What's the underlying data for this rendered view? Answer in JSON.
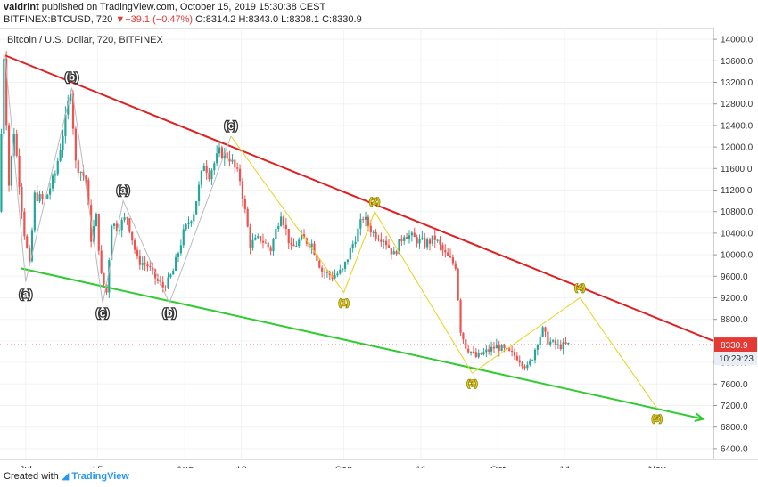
{
  "header": {
    "author": "valdrint",
    "published_text": "published on TradingView.com, October 15, 2019 15:30:38 CEST",
    "symbol": "BITFINEX:BTCUSD, 720",
    "change": "−39.1 (−0.47%)",
    "open": "O:8314.2",
    "high": "H:8343.0",
    "low": "L:8308.1",
    "close": "C:8330.9"
  },
  "chart_data": {
    "type": "candlestick",
    "title": "Bitcoin / U.S. Dollar, 720, BITFINEX",
    "ylim": [
      6200,
      14200
    ],
    "xlim": [
      "2019-06-26",
      "2019-11-12"
    ],
    "price_ticks": [
      14000,
      13600,
      13200,
      12800,
      12400,
      12000,
      11600,
      11200,
      10800,
      10400,
      10000,
      9600,
      9200,
      8800,
      8400,
      8000,
      7600,
      7200,
      6800,
      6400
    ],
    "price_tick_labels": [
      "14000.0",
      "13600.0",
      "13200.0",
      "12800.0",
      "12400.0",
      "12000.0",
      "11600.0",
      "11200.0",
      "10800.0",
      "10400.0",
      "10000.0",
      "9600.0",
      "9200.0",
      "8800.0",
      "8400.0",
      "8000.0",
      "7600.0",
      "7200.0",
      "6800.0",
      "6400.0"
    ],
    "time_ticks": [
      {
        "date": "2019-07-01",
        "label": "Jul"
      },
      {
        "date": "2019-07-15",
        "label": "15"
      },
      {
        "date": "2019-08-01",
        "label": "Aug"
      },
      {
        "date": "2019-08-12",
        "label": "12"
      },
      {
        "date": "2019-09-01",
        "label": "Sep"
      },
      {
        "date": "2019-09-16",
        "label": "16"
      },
      {
        "date": "2019-10-01",
        "label": "Oct"
      },
      {
        "date": "2019-10-14",
        "label": "14"
      },
      {
        "date": "2019-11-01",
        "label": "Nov"
      }
    ],
    "last_price": {
      "value": 8330.9,
      "label": "8330.9",
      "countdown": "10:29:23"
    },
    "price_path": [
      [
        "2019-06-26",
        10800
      ],
      [
        "2019-06-27",
        13700
      ],
      [
        "2019-06-28",
        11300
      ],
      [
        "2019-06-29",
        12300
      ],
      [
        "2019-07-01",
        10400
      ],
      [
        "2019-07-02",
        9800
      ],
      [
        "2019-07-03",
        11100
      ],
      [
        "2019-07-05",
        11000
      ],
      [
        "2019-07-07",
        11500
      ],
      [
        "2019-07-09",
        12500
      ],
      [
        "2019-07-10",
        13100
      ],
      [
        "2019-07-11",
        11700
      ],
      [
        "2019-07-13",
        11400
      ],
      [
        "2019-07-14",
        10300
      ],
      [
        "2019-07-15",
        10700
      ],
      [
        "2019-07-16",
        9600
      ],
      [
        "2019-07-17",
        9300
      ],
      [
        "2019-07-18",
        10600
      ],
      [
        "2019-07-19",
        10500
      ],
      [
        "2019-07-21",
        10700
      ],
      [
        "2019-07-23",
        9900
      ],
      [
        "2019-07-25",
        9800
      ],
      [
        "2019-07-27",
        9500
      ],
      [
        "2019-07-28",
        9400
      ],
      [
        "2019-07-29",
        9500
      ],
      [
        "2019-07-30",
        9700
      ],
      [
        "2019-08-01",
        10400
      ],
      [
        "2019-08-03",
        10800
      ],
      [
        "2019-08-05",
        11700
      ],
      [
        "2019-08-06",
        11500
      ],
      [
        "2019-08-08",
        11900
      ],
      [
        "2019-08-10",
        11800
      ],
      [
        "2019-08-12",
        11400
      ],
      [
        "2019-08-14",
        10200
      ],
      [
        "2019-08-16",
        10300
      ],
      [
        "2019-08-18",
        10100
      ],
      [
        "2019-08-20",
        10800
      ],
      [
        "2019-08-22",
        10100
      ],
      [
        "2019-08-24",
        10300
      ],
      [
        "2019-08-26",
        10200
      ],
      [
        "2019-08-28",
        9700
      ],
      [
        "2019-08-30",
        9600
      ],
      [
        "2019-09-01",
        9700
      ],
      [
        "2019-09-03",
        10200
      ],
      [
        "2019-09-05",
        10700
      ],
      [
        "2019-09-07",
        10400
      ],
      [
        "2019-09-09",
        10300
      ],
      [
        "2019-09-11",
        10000
      ],
      [
        "2019-09-13",
        10400
      ],
      [
        "2019-09-15",
        10300
      ],
      [
        "2019-09-17",
        10200
      ],
      [
        "2019-09-19",
        10300
      ],
      [
        "2019-09-21",
        10000
      ],
      [
        "2019-09-23",
        9800
      ],
      [
        "2019-09-24",
        8600
      ],
      [
        "2019-09-25",
        8300
      ],
      [
        "2019-09-27",
        8100
      ],
      [
        "2019-09-29",
        8200
      ],
      [
        "2019-10-01",
        8300
      ],
      [
        "2019-10-03",
        8200
      ],
      [
        "2019-10-05",
        8100
      ],
      [
        "2019-10-07",
        7900
      ],
      [
        "2019-10-08",
        8100
      ],
      [
        "2019-10-09",
        8400
      ],
      [
        "2019-10-10",
        8600
      ],
      [
        "2019-10-11",
        8400
      ],
      [
        "2019-10-13",
        8300
      ],
      [
        "2019-10-15",
        8330
      ]
    ],
    "trendlines": [
      {
        "name": "upper",
        "color": "#e02020",
        "points": [
          [
            "2019-06-27",
            13700
          ],
          [
            "2019-11-12",
            8400
          ]
        ]
      },
      {
        "name": "lower",
        "color": "#2ecc2e",
        "points": [
          [
            "2019-06-30",
            9750
          ],
          [
            "2019-11-10",
            6950
          ]
        ]
      }
    ],
    "wave_paths": [
      {
        "color": "#bbbbbb",
        "points": [
          [
            "2019-06-27",
            13700
          ],
          [
            "2019-07-01",
            9500
          ],
          [
            "2019-07-10",
            13100
          ],
          [
            "2019-07-16",
            9100
          ],
          [
            "2019-07-20",
            11000
          ],
          [
            "2019-07-29",
            9100
          ],
          [
            "2019-08-10",
            12200
          ]
        ]
      },
      {
        "color": "#e6d21a",
        "points": [
          [
            "2019-08-10",
            12200
          ],
          [
            "2019-09-01",
            9300
          ],
          [
            "2019-09-07",
            10800
          ],
          [
            "2019-09-26",
            7800
          ],
          [
            "2019-10-17",
            9200
          ],
          [
            "2019-11-01",
            7150
          ]
        ]
      }
    ],
    "wave_labels": [
      {
        "text": "(a)",
        "date": "2019-07-01",
        "price": 9450,
        "color": "#ffffff",
        "pos": "below"
      },
      {
        "text": "(b)",
        "date": "2019-07-10",
        "price": 13100,
        "color": "#ffffff",
        "pos": "above"
      },
      {
        "text": "(c)",
        "date": "2019-07-16",
        "price": 9100,
        "color": "#ffffff",
        "pos": "below"
      },
      {
        "text": "(a)",
        "date": "2019-07-20",
        "price": 11000,
        "color": "#ffffff",
        "pos": "above"
      },
      {
        "text": "(b)",
        "date": "2019-07-29",
        "price": 9100,
        "color": "#ffffff",
        "pos": "below"
      },
      {
        "text": "(c)",
        "date": "2019-08-10",
        "price": 12200,
        "color": "#ffffff",
        "pos": "above"
      },
      {
        "text": "(1)",
        "date": "2019-09-01",
        "price": 9300,
        "color": "#e6d21a",
        "pos": "below"
      },
      {
        "text": "(2)",
        "date": "2019-09-07",
        "price": 10800,
        "color": "#e6d21a",
        "pos": "above"
      },
      {
        "text": "(3)",
        "date": "2019-09-26",
        "price": 7800,
        "color": "#e6d21a",
        "pos": "below"
      },
      {
        "text": "(4)",
        "date": "2019-10-17",
        "price": 9200,
        "color": "#e6d21a",
        "pos": "above"
      },
      {
        "text": "(5)",
        "date": "2019-11-01",
        "price": 7150,
        "color": "#e6d21a",
        "pos": "below"
      }
    ],
    "colors": {
      "up": "#26a69a",
      "down": "#ef5350",
      "last_price": "#e53935"
    }
  },
  "footer": {
    "created_with": "Created with",
    "brand": "TradingView"
  }
}
